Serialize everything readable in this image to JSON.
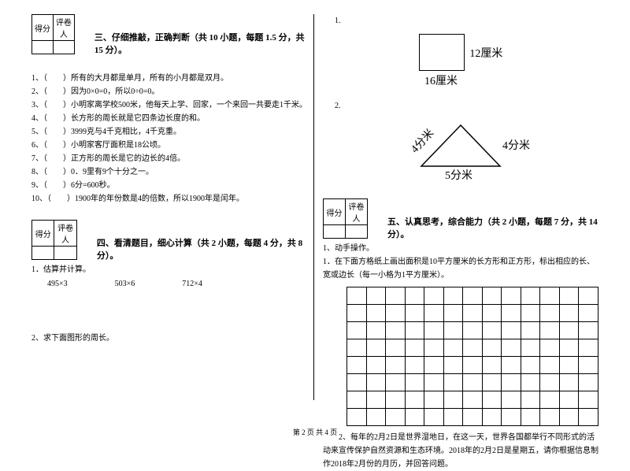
{
  "score_headers": [
    "得分",
    "评卷人"
  ],
  "section3": {
    "title": "三、仔细推敲，正确判断（共 10 小题，每题 1.5 分，共 15 分）。",
    "items": [
      "1、（　　）所有的大月都是单月，所有的小月都是双月。",
      "2、（　　）因为0×0=0，所以0÷0=0。",
      "3、（　　）小明家离学校500米，他每天上学、回家，一个来回一共要走1千米。",
      "4、（　　）长方形的周长就是它四条边长度的和。",
      "5、（　　）3999克与4千克相比，4千克重。",
      "6、（　　）小明家客厅面积是18公顷。",
      "7、（　　）正方形的周长是它的边长的4倍。",
      "8、（　　）0．9里有9个十分之一。",
      "9、（　　）6分=600秒。",
      "10、（　　）1900年的年份数是4的倍数，所以1900年是闰年。"
    ]
  },
  "section4": {
    "title": "四、看清题目，细心计算（共 2 小题，每题 4 分，共 8 分）。",
    "q1": "1．估算并计算。",
    "calc": [
      "495×3",
      "503×6",
      "712×4"
    ],
    "q2": "2、求下面图形的周长。"
  },
  "right_figs": {
    "n1": "1.",
    "rect_right": "12厘米",
    "rect_bottom": "16厘米",
    "n2": "2.",
    "tri_left": "4分米",
    "tri_right": "4分米",
    "tri_bottom": "5分米"
  },
  "section5": {
    "title": "五、认真思考，综合能力（共 2 小题，每题 7 分，共 14 分）。",
    "q1a": "1、动手操作。",
    "q1b": "1．在下面方格纸上画出面积是10平方厘米的长方形和正方形，标出相应的长、宽或边长（每一小格为1平方厘米）。",
    "q2": "2、每年的2月2日是世界湿地日，在这一天，世界各国都举行不同形式的活动来宣传保护自然资源和生态环境。2018年的2月2日是星期五，请你根据信息制作2018年2月份的月历，并回答问题。"
  },
  "grid": {
    "rows": 8,
    "cols": 13
  },
  "footer": "第 2 页 共 4 页",
  "colors": {
    "line": "#000000",
    "bg": "#ffffff"
  }
}
